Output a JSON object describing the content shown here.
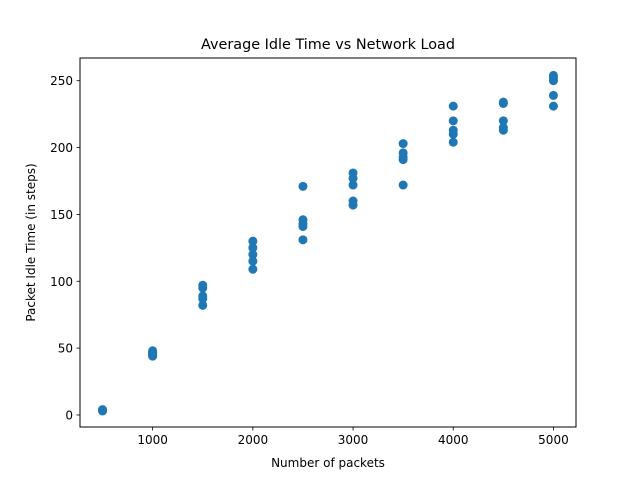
{
  "chart_data": {
    "type": "scatter",
    "title": "Average Idle Time vs Network Load",
    "xlabel": "Number of packets",
    "ylabel": "Packet Idle Time (in steps)",
    "xlim": [
      275,
      5225
    ],
    "ylim": [
      -9,
      267
    ],
    "x_ticks": [
      1000,
      2000,
      3000,
      4000,
      5000
    ],
    "y_ticks": [
      0,
      50,
      100,
      150,
      200,
      250
    ],
    "grid": false,
    "color": "#1f77b4",
    "series": [
      {
        "points": [
          [
            500,
            3
          ],
          [
            500,
            3.5
          ],
          [
            500,
            4
          ],
          [
            500,
            3.2
          ],
          [
            500,
            3.8
          ],
          [
            1000,
            44
          ],
          [
            1000,
            45
          ],
          [
            1000,
            46
          ],
          [
            1000,
            47
          ],
          [
            1000,
            48
          ],
          [
            1000,
            44.5
          ],
          [
            1000,
            46.5
          ],
          [
            1500,
            82
          ],
          [
            1500,
            87
          ],
          [
            1500,
            89
          ],
          [
            1500,
            95
          ],
          [
            1500,
            97
          ],
          [
            2000,
            109
          ],
          [
            2000,
            115
          ],
          [
            2000,
            120
          ],
          [
            2000,
            125
          ],
          [
            2000,
            130
          ],
          [
            2500,
            131
          ],
          [
            2500,
            141
          ],
          [
            2500,
            143
          ],
          [
            2500,
            146
          ],
          [
            2500,
            171
          ],
          [
            3000,
            157
          ],
          [
            3000,
            160
          ],
          [
            3000,
            172
          ],
          [
            3000,
            177
          ],
          [
            3000,
            181
          ],
          [
            3500,
            172
          ],
          [
            3500,
            191
          ],
          [
            3500,
            193
          ],
          [
            3500,
            196
          ],
          [
            3500,
            203
          ],
          [
            4000,
            204
          ],
          [
            4000,
            210
          ],
          [
            4000,
            213
          ],
          [
            4000,
            220
          ],
          [
            4000,
            231
          ],
          [
            4500,
            213
          ],
          [
            4500,
            215
          ],
          [
            4500,
            220
          ],
          [
            4500,
            233
          ],
          [
            4500,
            234
          ],
          [
            5000,
            231
          ],
          [
            5000,
            239
          ],
          [
            5000,
            250
          ],
          [
            5000,
            252
          ],
          [
            5000,
            254
          ]
        ]
      }
    ]
  }
}
